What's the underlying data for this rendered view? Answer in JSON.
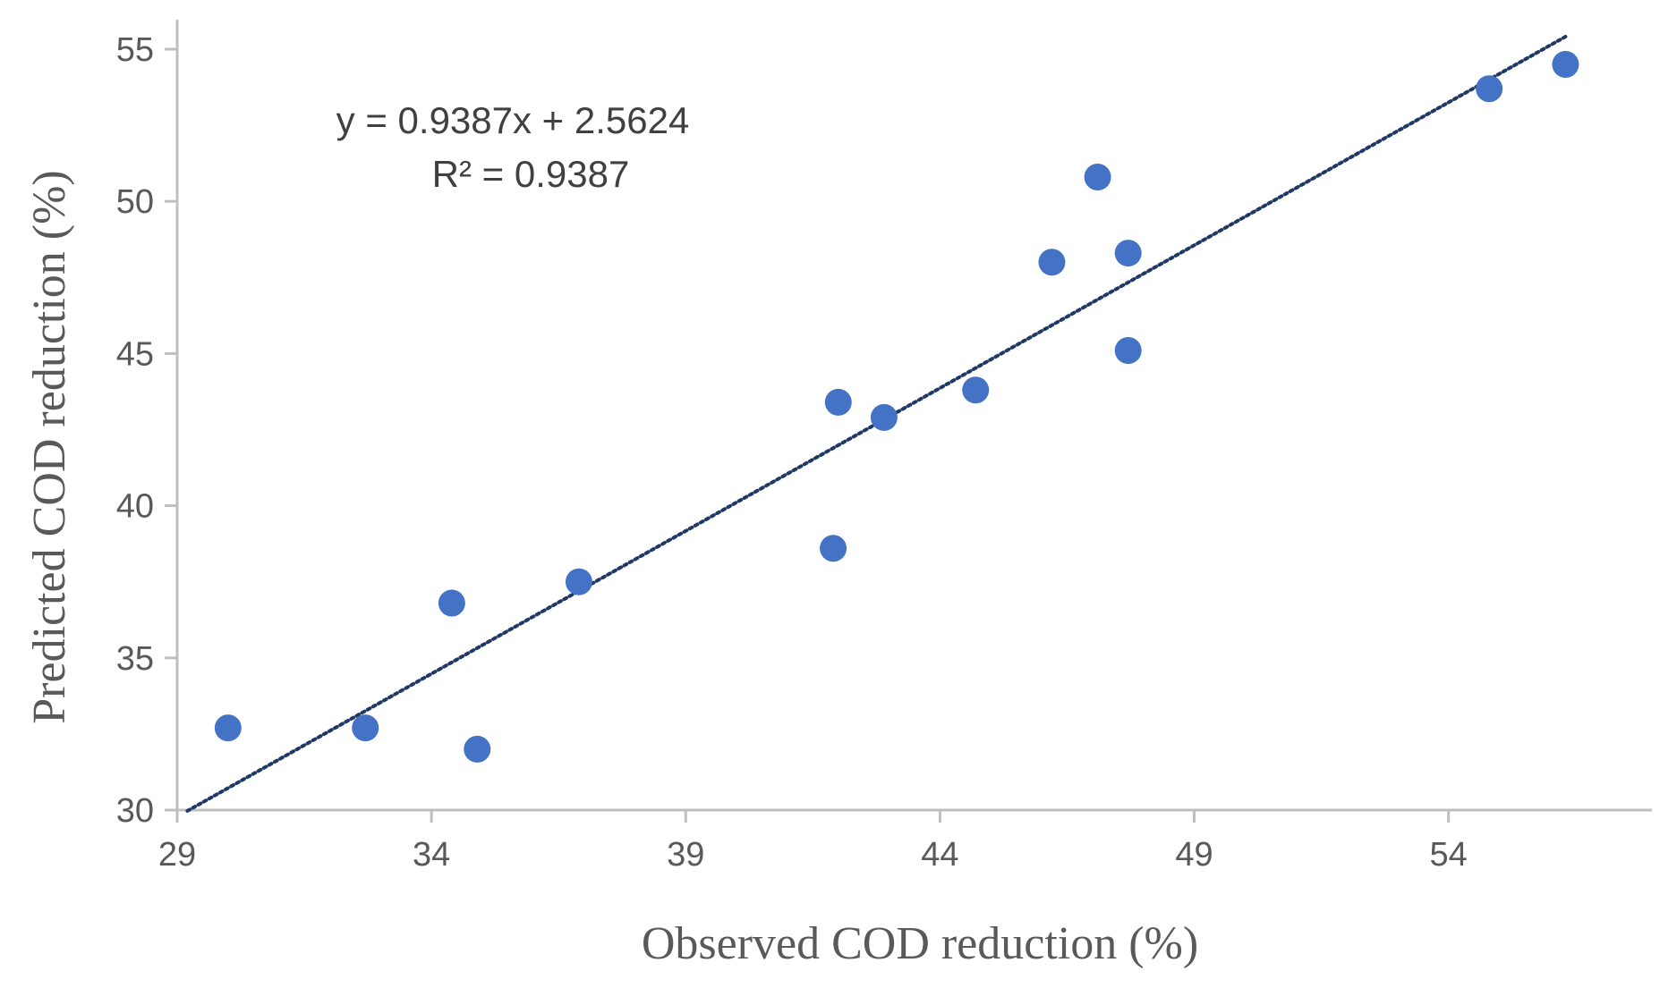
{
  "chart_data": {
    "type": "scatter",
    "title": "",
    "xlabel": "Observed COD reduction (%)",
    "ylabel": "Predicted COD reduction (%)",
    "xlim": [
      29,
      58
    ],
    "ylim": [
      30,
      55
    ],
    "xticks": [
      29,
      34,
      39,
      44,
      49,
      54
    ],
    "yticks": [
      30,
      35,
      40,
      45,
      50,
      55
    ],
    "grid": false,
    "legend": "none",
    "colors": {
      "points": "#4472C4",
      "trendline": "#1F3864",
      "axis": "#BFBFBF"
    },
    "series": [
      {
        "name": "COD reduction",
        "points": [
          {
            "x": 30.0,
            "y": 32.7
          },
          {
            "x": 32.7,
            "y": 32.7
          },
          {
            "x": 34.4,
            "y": 36.8
          },
          {
            "x": 34.9,
            "y": 32.0
          },
          {
            "x": 36.9,
            "y": 37.5
          },
          {
            "x": 41.9,
            "y": 38.6
          },
          {
            "x": 42.0,
            "y": 43.4
          },
          {
            "x": 42.9,
            "y": 42.9
          },
          {
            "x": 44.7,
            "y": 43.8
          },
          {
            "x": 46.2,
            "y": 48.0
          },
          {
            "x": 47.1,
            "y": 50.8
          },
          {
            "x": 47.7,
            "y": 48.3
          },
          {
            "x": 47.7,
            "y": 45.1
          },
          {
            "x": 54.8,
            "y": 53.7
          },
          {
            "x": 56.3,
            "y": 54.5
          }
        ]
      }
    ],
    "trendline": {
      "slope": 0.9387,
      "intercept": 2.5624,
      "x_range": [
        29.2,
        56.3
      ],
      "style": "dotted"
    },
    "annotations": {
      "equation": "y = 0.9387x + 2.5624",
      "r_squared": "R² = 0.9387"
    }
  }
}
